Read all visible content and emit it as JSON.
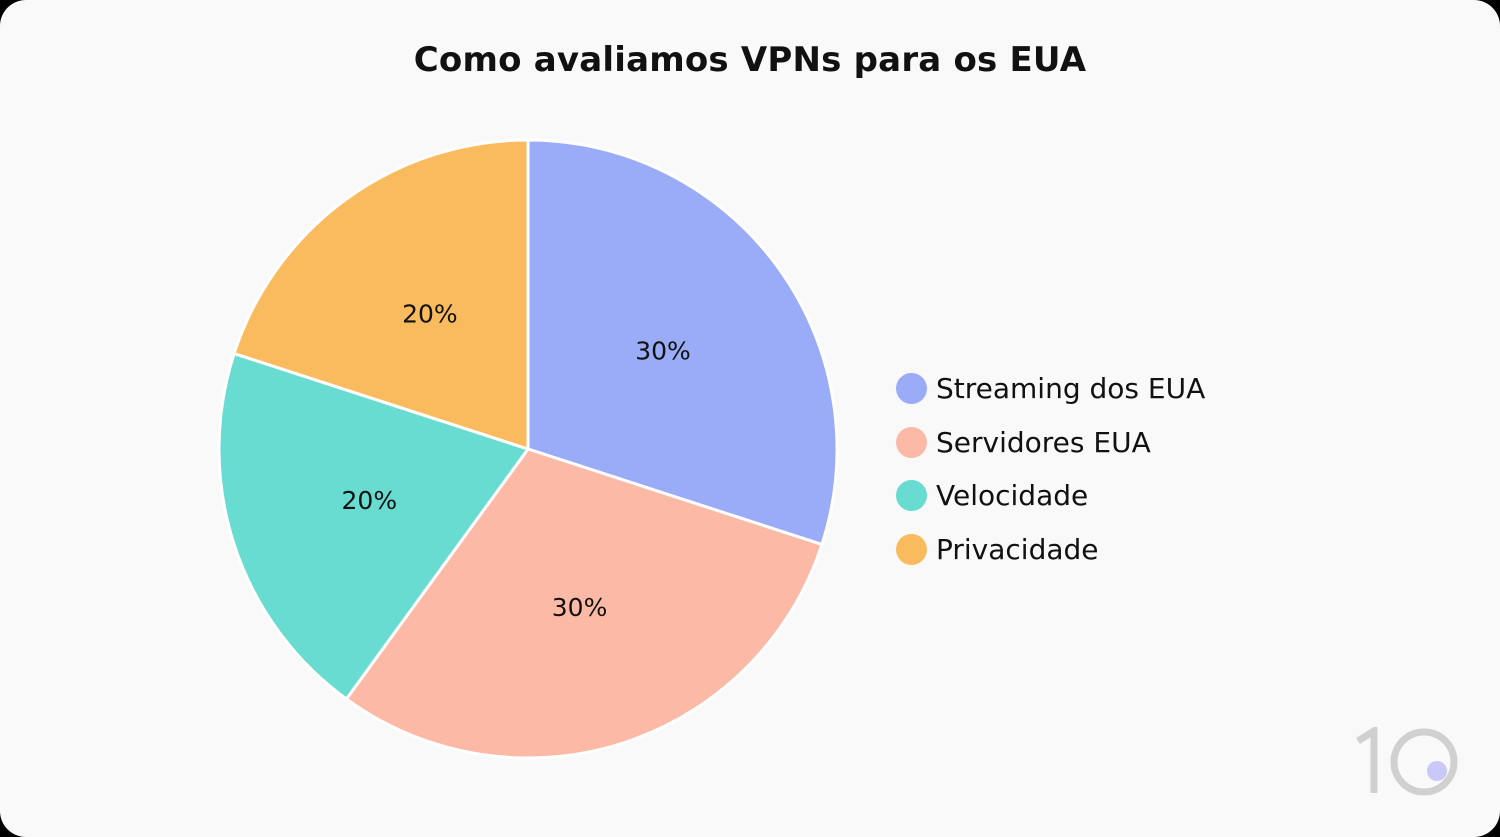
{
  "chart_data": {
    "type": "pie",
    "title": "Como avaliamos VPNs para os EUA",
    "categories": [
      "Streaming dos EUA",
      "Servidores EUA",
      "Velocidade",
      "Privacidade"
    ],
    "values": [
      30,
      30,
      20,
      20
    ],
    "value_labels": [
      "30%",
      "30%",
      "20%",
      "20%"
    ],
    "colors": [
      "#9aabf8",
      "#fcb9a6",
      "#68dcd1",
      "#f9bb5e"
    ],
    "start_angle_deg": 0,
    "direction": "clockwise",
    "legend": "right"
  },
  "background_color": "#f9f9f9",
  "logo": {
    "name": "10",
    "accent_color": "#c9c8f6",
    "glyph_color": "#d0d0d0"
  }
}
